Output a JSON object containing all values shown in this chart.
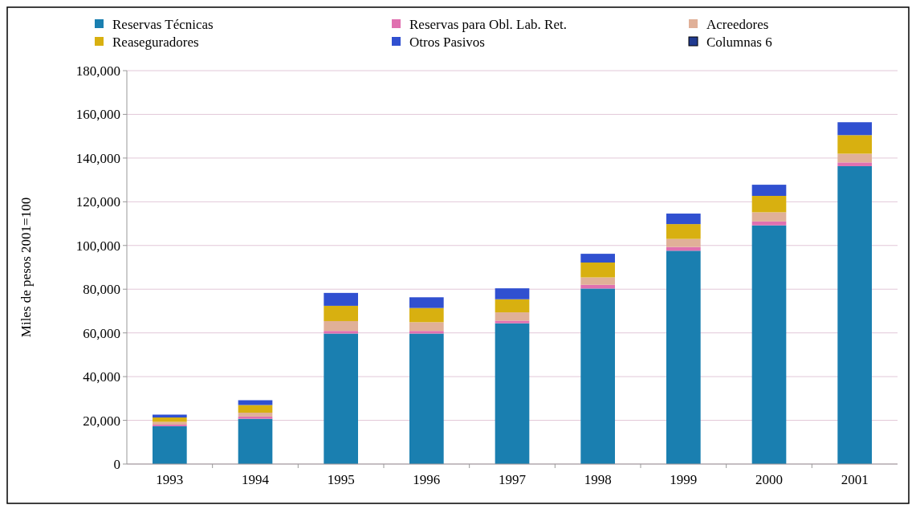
{
  "chart_data": {
    "type": "bar",
    "stacked": true,
    "ylabel": "Miles de pesos 2001=100",
    "categories": [
      "1993",
      "1994",
      "1995",
      "1996",
      "1997",
      "1998",
      "1999",
      "2000",
      "2001"
    ],
    "series": [
      {
        "name": "Reservas Técnicas",
        "color": "#1a7fb0",
        "values": [
          17300,
          20700,
          59700,
          59700,
          64400,
          80300,
          97600,
          109200,
          136300
        ]
      },
      {
        "name": "Reservas para Obl. Lab. Ret.",
        "color": "#e070b0",
        "values": [
          700,
          1000,
          1200,
          1200,
          1200,
          1700,
          1700,
          1800,
          1700
        ]
      },
      {
        "name": "Acreedores",
        "color": "#e0b098",
        "values": [
          1300,
          1800,
          4500,
          4000,
          3800,
          3400,
          3700,
          4200,
          4000
        ]
      },
      {
        "name": "Reaseguradores",
        "color": "#d8b010",
        "values": [
          2000,
          3500,
          7000,
          6500,
          6000,
          6800,
          6800,
          7500,
          8500
        ]
      },
      {
        "name": "Otros Pasivos",
        "color": "#3050d0",
        "values": [
          1300,
          2200,
          5900,
          4900,
          5000,
          4000,
          4800,
          5100,
          5900
        ]
      },
      {
        "name": "Columnas 6",
        "color": "#203a90",
        "values": [
          null,
          null,
          null,
          null,
          null,
          null,
          null,
          null,
          null
        ]
      }
    ],
    "ylim": [
      0,
      180000
    ],
    "yticks": [
      {
        "value": 0,
        "label": "0"
      },
      {
        "value": 20000,
        "label": "20,000"
      },
      {
        "value": 40000,
        "label": "40,000"
      },
      {
        "value": 60000,
        "label": "60,000"
      },
      {
        "value": 80000,
        "label": "80,000"
      },
      {
        "value": 100000,
        "label": "100,000"
      },
      {
        "value": 120000,
        "label": "120,000"
      },
      {
        "value": 140000,
        "label": "140,000"
      },
      {
        "value": 160000,
        "label": "160,000"
      },
      {
        "value": 180000,
        "label": "180,000"
      }
    ],
    "grid": "y",
    "legend": "top"
  }
}
